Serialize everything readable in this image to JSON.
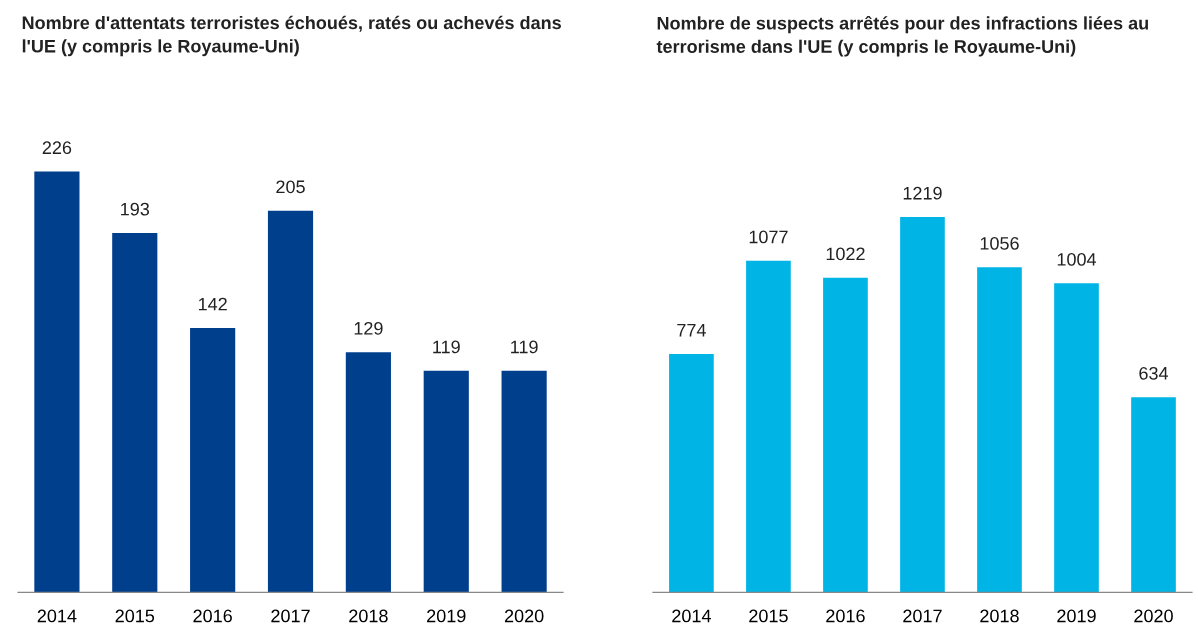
{
  "chart_data": [
    {
      "type": "bar",
      "title": "Nombre d'attentats terroristes échoués, ratés ou achevés dans l'UE (y compris le Royaume-Uni)",
      "categories": [
        "2014",
        "2015",
        "2016",
        "2017",
        "2018",
        "2019",
        "2020"
      ],
      "values": [
        226,
        193,
        142,
        205,
        129,
        119,
        119
      ],
      "color": "#003f8c",
      "data_labels": true,
      "grid": false,
      "legend": false
    },
    {
      "type": "bar",
      "title": "Nombre de suspects arrêtés pour des infractions liées au terrorisme dans l'UE (y compris le Royaume-Uni)",
      "categories": [
        "2014",
        "2015",
        "2016",
        "2017",
        "2018",
        "2019",
        "2020"
      ],
      "values": [
        774,
        1077,
        1022,
        1219,
        1056,
        1004,
        634
      ],
      "color": "#00b4e6",
      "data_labels": true,
      "grid": false,
      "legend": false
    }
  ]
}
